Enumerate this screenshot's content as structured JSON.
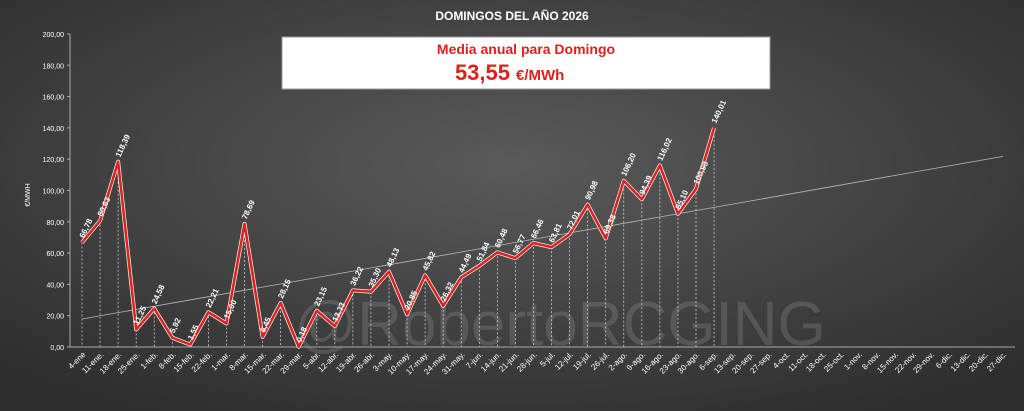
{
  "chart_data": {
    "type": "line",
    "title": "DOMINGOS DEL AÑO 2026",
    "ylabel": "€/MWH",
    "banner": {
      "title": "Media anual para Domingo",
      "value": "53,55",
      "unit": "€/MWh"
    },
    "watermark": "@RobertoRCGING",
    "categories": [
      "4-ene",
      "11-ene.",
      "18-ene.",
      "25-ene.",
      "1-feb.",
      "8-feb.",
      "15-feb.",
      "22-feb.",
      "1-mar.",
      "8-mar.",
      "15-mar.",
      "22-mar.",
      "29-mar.",
      "5-abr.",
      "12-abr.",
      "19-abr.",
      "26-abr.",
      "3-may.",
      "10-may.",
      "17-may.",
      "24-may.",
      "31-may.",
      "7-jun.",
      "14-jun.",
      "21-jun.",
      "28-jun.",
      "5-jul.",
      "12-jul.",
      "19-jul.",
      "26-jul.",
      "2-ago.",
      "9-ago.",
      "16-ago.",
      "23-ago.",
      "30-ago.",
      "6-sep.",
      "13-sep.",
      "20-sep.",
      "27-sep.",
      "4-oct.",
      "11-oct.",
      "18-oct.",
      "25-oct.",
      "1-nov.",
      "8-nov.",
      "15-nov.",
      "22-nov.",
      "29-nov.",
      "6-dic.",
      "13-dic.",
      "20-dic.",
      "27-dic."
    ],
    "values": [
      66.78,
      80.63,
      118.39,
      11.25,
      24.58,
      5.92,
      1.55,
      22.21,
      15.0,
      78.69,
      6.45,
      28.15,
      0.18,
      23.15,
      13.33,
      36.22,
      35.3,
      48.13,
      20.85,
      45.82,
      26.32,
      44.49,
      51.84,
      60.48,
      56.77,
      66.46,
      63.81,
      72.01,
      90.98,
      69.38,
      106.2,
      94.39,
      116.02,
      85.1,
      100.98,
      140.01,
      null,
      null,
      null,
      null,
      null,
      null,
      null,
      null,
      null,
      null,
      null,
      null,
      null,
      null,
      null,
      null
    ],
    "value_labels": [
      "66,78",
      "80,63",
      "118,39",
      "11,25",
      "24,58",
      "5,92",
      "1,55",
      "22,21",
      "15,00",
      "78,69",
      "6,45",
      "28,15",
      "0,18",
      "23,15",
      "13,33",
      "36,22",
      "35,30",
      "48,13",
      "20,85",
      "45,82",
      "26,32",
      "44,49",
      "51,84",
      "60,48",
      "56,77",
      "66,46",
      "63,81",
      "72,01",
      "90,98",
      "69,38",
      "106,20",
      "94,39",
      "116,02",
      "85,10",
      "100,98",
      "140,01",
      null,
      null,
      null,
      null,
      null,
      null,
      null,
      null,
      null,
      null,
      null,
      null,
      null,
      null,
      null,
      null
    ],
    "color": "#e0201b",
    "trendline": true,
    "ylim": [
      0,
      200
    ],
    "yticks": [
      {
        "value": 0,
        "label": "0,00"
      },
      {
        "value": 20,
        "label": "20,00"
      },
      {
        "value": 40,
        "label": "40,00"
      },
      {
        "value": 60,
        "label": "60,00"
      },
      {
        "value": 80,
        "label": "80,00"
      },
      {
        "value": 100,
        "label": "100,00"
      },
      {
        "value": 120,
        "label": "120,00"
      },
      {
        "value": 140,
        "label": "140,00"
      },
      {
        "value": 160,
        "label": "160,00"
      },
      {
        "value": 180,
        "label": "180,00"
      },
      {
        "value": 200,
        "label": "200,00"
      }
    ]
  }
}
